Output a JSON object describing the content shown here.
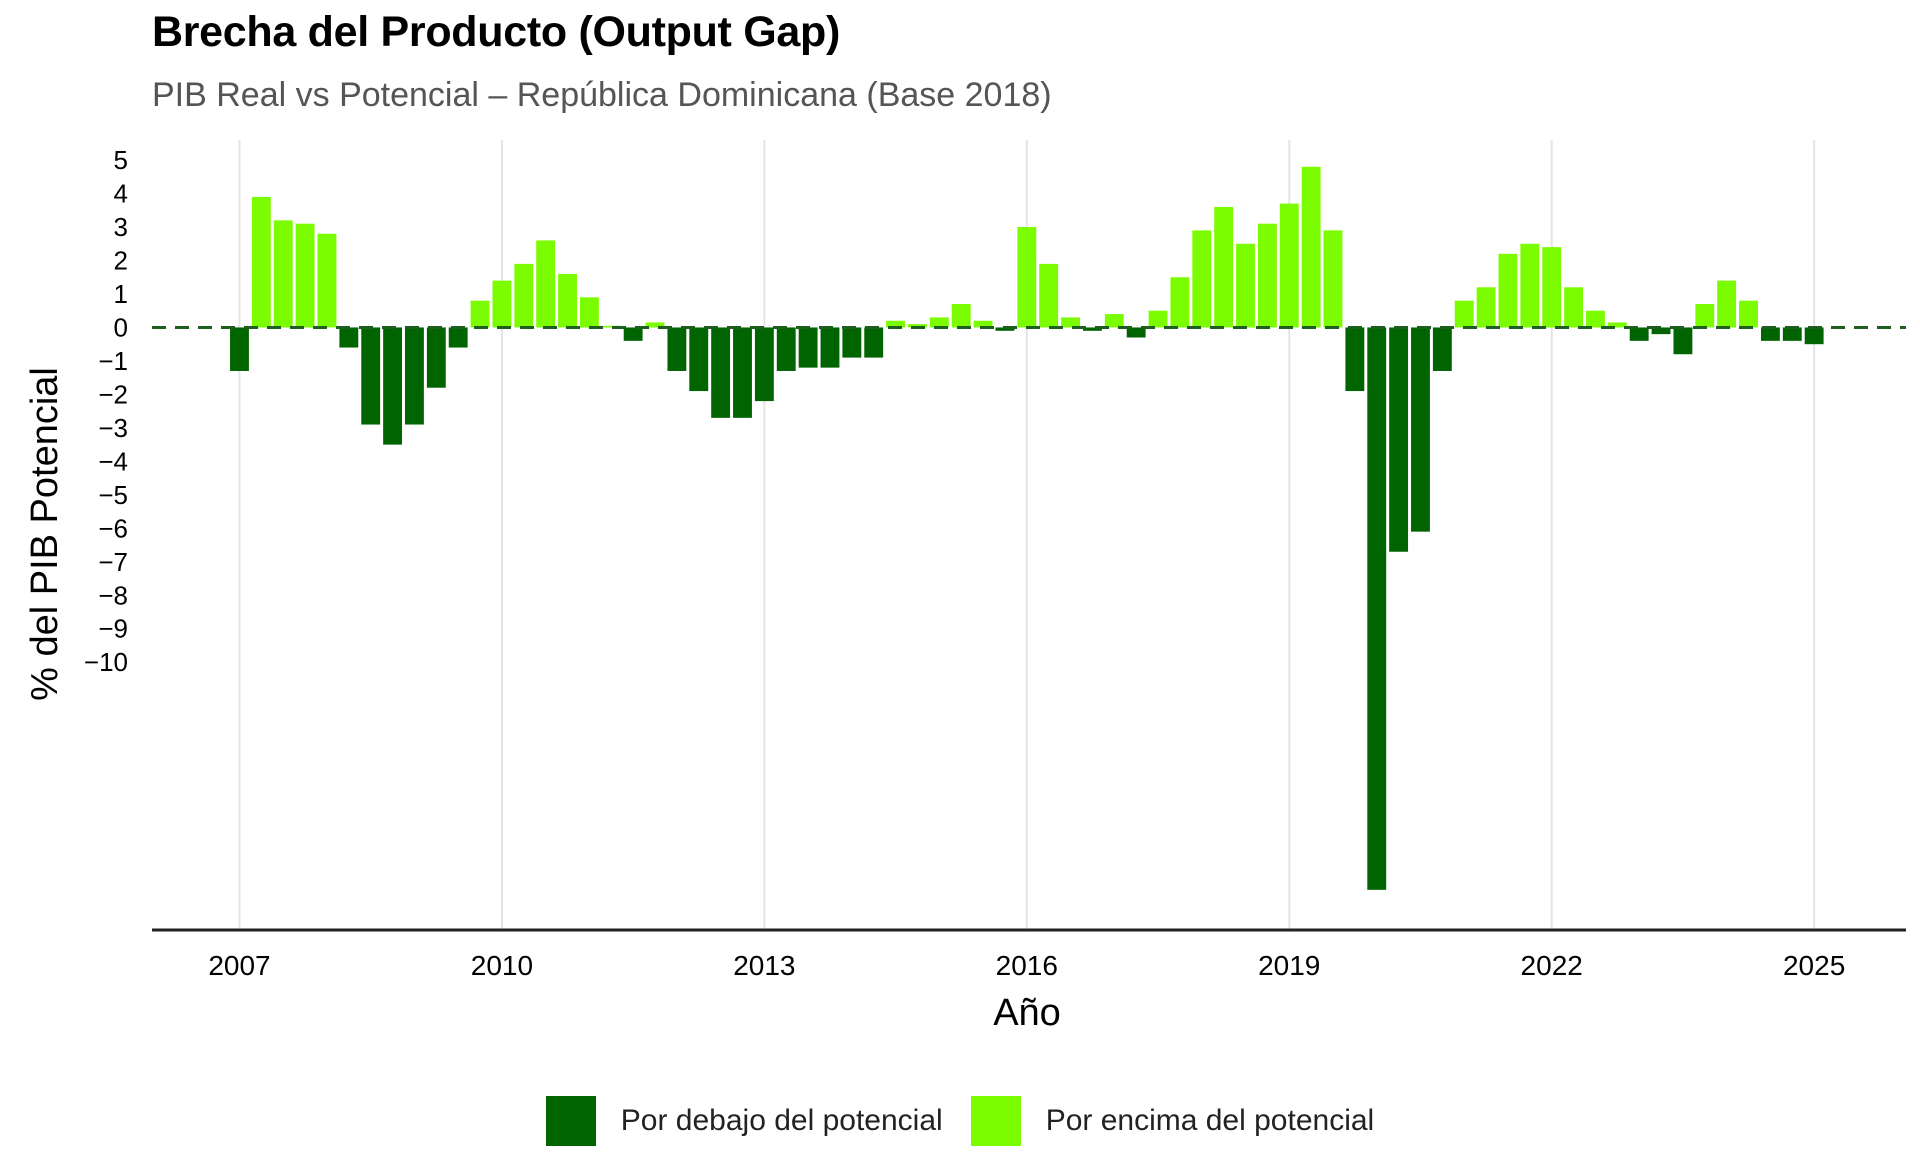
{
  "colors": {
    "below": "#006400",
    "above": "#7CFC00",
    "zero_line": "#1e5e1e",
    "grid": "#e4e4e4"
  },
  "chart_data": {
    "type": "bar",
    "title": "Brecha del Producto (Output Gap)",
    "subtitle": "PIB Real vs Potencial – República Dominicana (Base 2018)",
    "xlabel": "Año",
    "ylabel": "% del PIB Potencial",
    "x_ticks": [
      "2007",
      "2010",
      "2013",
      "2016",
      "2019",
      "2022",
      "2025"
    ],
    "y_ticks": [
      "5",
      "4",
      "3",
      "2",
      "1",
      "0",
      "−1",
      "−2",
      "−3",
      "−4",
      "−5",
      "−6",
      "−7",
      "−8",
      "−9",
      "−10"
    ],
    "ylim": [
      -18,
      5.6
    ],
    "xlim": [
      2006.0,
      2026.05
    ],
    "zero_line": "dashed",
    "grid": "vertical",
    "legend_position": "bottom",
    "legend": [
      {
        "key": "below",
        "label": "Por debajo del potencial"
      },
      {
        "key": "above",
        "label": "Por encima del potencial"
      }
    ],
    "x_start": 2007.0,
    "x_step": 0.25,
    "values": [
      -1.3,
      3.9,
      3.2,
      3.1,
      2.8,
      -0.6,
      -2.9,
      -3.5,
      -2.9,
      -1.8,
      -0.6,
      0.8,
      1.4,
      1.9,
      2.6,
      1.6,
      0.9,
      0.05,
      -0.4,
      0.15,
      -1.3,
      -1.9,
      -2.7,
      -2.7,
      -2.2,
      -1.3,
      -1.2,
      -1.2,
      -0.9,
      -0.9,
      0.2,
      0.1,
      0.3,
      0.7,
      0.2,
      -0.1,
      3.0,
      1.9,
      0.3,
      -0.1,
      0.4,
      -0.3,
      0.5,
      1.5,
      2.9,
      3.6,
      2.5,
      3.1,
      3.7,
      4.8,
      2.9,
      -1.9,
      -16.8,
      -6.7,
      -6.1,
      -1.3,
      0.8,
      1.2,
      2.2,
      2.5,
      2.4,
      1.2,
      0.5,
      0.15,
      -0.4,
      -0.2,
      -0.8,
      0.7,
      1.4,
      0.8,
      -0.4,
      -0.4,
      -0.5
    ]
  }
}
